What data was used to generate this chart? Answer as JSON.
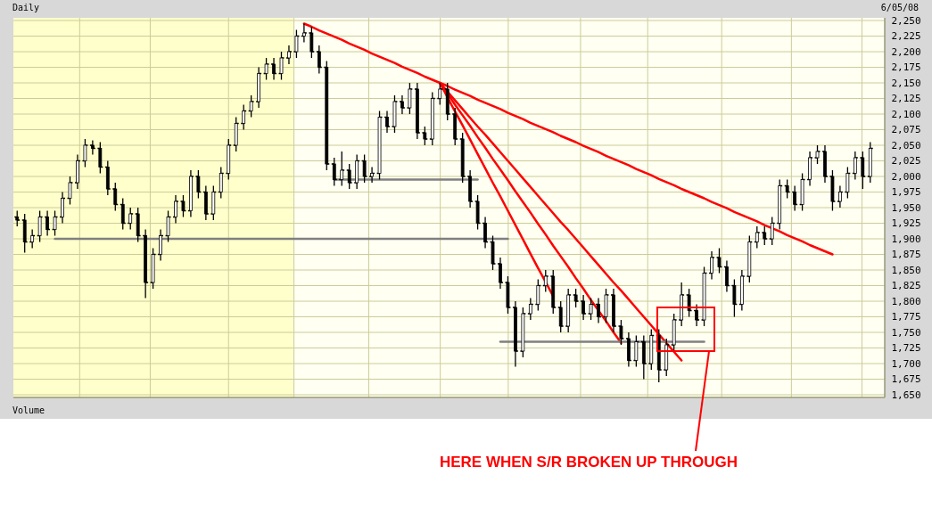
{
  "chart_data": {
    "type": "candlestick",
    "title": "Daily",
    "subtitle": "6/05/08",
    "annotations": [
      "Volume",
      "HERE WHEN S/R BROKEN UP THROUGH"
    ],
    "categories": [
      null,
      null,
      null,
      null,
      null,
      null,
      null,
      null,
      null,
      null,
      null,
      null,
      null,
      null,
      null,
      null,
      null,
      null,
      null,
      null,
      null,
      null,
      null,
      null,
      null,
      null,
      null,
      null,
      null,
      null,
      null,
      null,
      null,
      null,
      null,
      null,
      null,
      null,
      null,
      null,
      null,
      null,
      null,
      null,
      null,
      null,
      null,
      null,
      null,
      null,
      null,
      null,
      null,
      null,
      null,
      null,
      null,
      null,
      null,
      null,
      null,
      null,
      null,
      null,
      null,
      null,
      null,
      null,
      null,
      null,
      null,
      null,
      null,
      null,
      null,
      null,
      null,
      null,
      null,
      null,
      null,
      null,
      null,
      null,
      null,
      null,
      null,
      null,
      null,
      null,
      null,
      null,
      null,
      null,
      null,
      null,
      null,
      null,
      null,
      null,
      null,
      null,
      null,
      null,
      null,
      null,
      null,
      null,
      null,
      null,
      null,
      null,
      null,
      null
    ],
    "ohlc": [
      [
        1935,
        1945,
        1920,
        1930
      ],
      [
        1930,
        1940,
        1878,
        1895
      ],
      [
        1895,
        1915,
        1885,
        1905
      ],
      [
        1905,
        1945,
        1895,
        1935
      ],
      [
        1935,
        1945,
        1905,
        1915
      ],
      [
        1915,
        1945,
        1905,
        1935
      ],
      [
        1935,
        1975,
        1925,
        1965
      ],
      [
        1965,
        2000,
        1955,
        1990
      ],
      [
        1990,
        2035,
        1980,
        2025
      ],
      [
        2025,
        2060,
        2015,
        2050
      ],
      [
        2050,
        2058,
        2035,
        2045
      ],
      [
        2045,
        2055,
        2005,
        2015
      ],
      [
        2015,
        2025,
        1970,
        1980
      ],
      [
        1980,
        1990,
        1945,
        1955
      ],
      [
        1955,
        1965,
        1915,
        1925
      ],
      [
        1925,
        1950,
        1915,
        1940
      ],
      [
        1940,
        1950,
        1895,
        1905
      ],
      [
        1905,
        1915,
        1805,
        1830
      ],
      [
        1830,
        1885,
        1820,
        1875
      ],
      [
        1875,
        1915,
        1865,
        1905
      ],
      [
        1905,
        1945,
        1895,
        1935
      ],
      [
        1935,
        1970,
        1925,
        1960
      ],
      [
        1960,
        1970,
        1935,
        1945
      ],
      [
        1945,
        2010,
        1935,
        2000
      ],
      [
        2000,
        2010,
        1965,
        1975
      ],
      [
        1975,
        1985,
        1930,
        1940
      ],
      [
        1940,
        1985,
        1930,
        1975
      ],
      [
        1975,
        2015,
        1965,
        2005
      ],
      [
        2005,
        2060,
        1995,
        2050
      ],
      [
        2050,
        2095,
        2040,
        2085
      ],
      [
        2085,
        2115,
        2075,
        2105
      ],
      [
        2105,
        2130,
        2095,
        2120
      ],
      [
        2120,
        2175,
        2110,
        2165
      ],
      [
        2165,
        2190,
        2155,
        2180
      ],
      [
        2180,
        2190,
        2155,
        2165
      ],
      [
        2165,
        2200,
        2155,
        2190
      ],
      [
        2190,
        2210,
        2180,
        2200
      ],
      [
        2200,
        2235,
        2190,
        2225
      ],
      [
        2225,
        2245,
        2215,
        2230
      ],
      [
        2230,
        2240,
        2190,
        2200
      ],
      [
        2200,
        2210,
        2165,
        2175
      ],
      [
        2175,
        2185,
        2010,
        2020
      ],
      [
        2020,
        2030,
        1985,
        1995
      ],
      [
        1995,
        2040,
        1985,
        2010
      ],
      [
        2010,
        2020,
        1980,
        1990
      ],
      [
        1990,
        2035,
        1980,
        2025
      ],
      [
        2025,
        2035,
        1990,
        2000
      ],
      [
        2000,
        2015,
        1990,
        2005
      ],
      [
        2005,
        2105,
        1995,
        2095
      ],
      [
        2095,
        2105,
        2070,
        2080
      ],
      [
        2080,
        2130,
        2070,
        2120
      ],
      [
        2120,
        2130,
        2100,
        2110
      ],
      [
        2110,
        2150,
        2100,
        2140
      ],
      [
        2140,
        2150,
        2060,
        2070
      ],
      [
        2070,
        2080,
        2050,
        2060
      ],
      [
        2060,
        2135,
        2050,
        2125
      ],
      [
        2125,
        2150,
        2115,
        2140
      ],
      [
        2140,
        2150,
        2090,
        2100
      ],
      [
        2100,
        2110,
        2050,
        2060
      ],
      [
        2060,
        2070,
        1990,
        2000
      ],
      [
        2000,
        2010,
        1950,
        1960
      ],
      [
        1960,
        1970,
        1915,
        1925
      ],
      [
        1925,
        1935,
        1885,
        1895
      ],
      [
        1895,
        1905,
        1850,
        1860
      ],
      [
        1860,
        1870,
        1820,
        1830
      ],
      [
        1830,
        1840,
        1780,
        1790
      ],
      [
        1790,
        1800,
        1695,
        1720
      ],
      [
        1720,
        1790,
        1710,
        1780
      ],
      [
        1780,
        1805,
        1770,
        1795
      ],
      [
        1795,
        1835,
        1785,
        1825
      ],
      [
        1825,
        1850,
        1815,
        1840
      ],
      [
        1840,
        1850,
        1780,
        1790
      ],
      [
        1790,
        1800,
        1750,
        1760
      ],
      [
        1760,
        1820,
        1750,
        1810
      ],
      [
        1810,
        1820,
        1790,
        1800
      ],
      [
        1800,
        1810,
        1770,
        1780
      ],
      [
        1780,
        1805,
        1770,
        1795
      ],
      [
        1795,
        1805,
        1765,
        1775
      ],
      [
        1775,
        1820,
        1765,
        1810
      ],
      [
        1810,
        1820,
        1750,
        1760
      ],
      [
        1760,
        1770,
        1730,
        1740
      ],
      [
        1740,
        1750,
        1695,
        1705
      ],
      [
        1705,
        1745,
        1695,
        1735
      ],
      [
        1735,
        1745,
        1675,
        1700
      ],
      [
        1700,
        1755,
        1690,
        1745
      ],
      [
        1745,
        1755,
        1670,
        1690
      ],
      [
        1690,
        1740,
        1680,
        1730
      ],
      [
        1730,
        1780,
        1720,
        1770
      ],
      [
        1770,
        1830,
        1760,
        1810
      ],
      [
        1810,
        1820,
        1775,
        1785
      ],
      [
        1785,
        1795,
        1760,
        1770
      ],
      [
        1770,
        1855,
        1760,
        1845
      ],
      [
        1845,
        1880,
        1835,
        1870
      ],
      [
        1870,
        1885,
        1845,
        1855
      ],
      [
        1855,
        1865,
        1815,
        1825
      ],
      [
        1825,
        1835,
        1775,
        1795
      ],
      [
        1795,
        1850,
        1785,
        1840
      ],
      [
        1840,
        1905,
        1830,
        1895
      ],
      [
        1895,
        1920,
        1885,
        1910
      ],
      [
        1910,
        1920,
        1890,
        1900
      ],
      [
        1900,
        1935,
        1890,
        1925
      ],
      [
        1925,
        1995,
        1915,
        1985
      ],
      [
        1985,
        1995,
        1965,
        1975
      ],
      [
        1975,
        1985,
        1945,
        1955
      ],
      [
        1955,
        2005,
        1945,
        1995
      ],
      [
        1995,
        2040,
        1985,
        2030
      ],
      [
        2030,
        2050,
        2020,
        2040
      ],
      [
        2040,
        2050,
        1990,
        2000
      ],
      [
        2000,
        2010,
        1945,
        1960
      ],
      [
        1960,
        1985,
        1950,
        1975
      ],
      [
        1975,
        2015,
        1965,
        2005
      ],
      [
        2005,
        2040,
        1995,
        2030
      ],
      [
        2030,
        2040,
        1980,
        2000
      ],
      [
        2000,
        2055,
        1990,
        2045
      ]
    ],
    "color": "#000000",
    "series": [
      {
        "type": "line",
        "color": "#ff0000",
        "values": [
          null,
          null,
          null,
          null,
          null,
          null,
          null,
          null,
          null,
          null,
          null,
          null,
          null,
          null,
          null,
          null,
          null,
          null,
          null,
          null,
          null,
          null,
          null,
          null,
          null,
          null,
          null,
          null,
          null,
          null,
          null,
          null,
          null,
          null,
          null,
          null,
          null,
          null,
          2245,
          2240,
          2234,
          2229,
          2224,
          2219,
          2213,
          2208,
          2203,
          2197,
          2192,
          2187,
          2182,
          2176,
          2171,
          2166,
          2160,
          2155,
          2150,
          2145,
          2139,
          2134,
          2129,
          2123,
          2118,
          2113,
          2108,
          2102,
          2097,
          2092,
          2086,
          2081,
          2076,
          2071,
          2065,
          2060,
          2055,
          2049,
          2044,
          2039,
          2033,
          2028,
          2023,
          2018,
          2012,
          2007,
          2002,
          1996,
          1991,
          1986,
          1980,
          1975,
          1970,
          1965,
          1959,
          1954,
          1949,
          1943,
          1938,
          1933,
          1928,
          1922,
          1917,
          1912,
          1906,
          1901,
          1896,
          1890,
          1885,
          1880,
          1875,
          null,
          null,
          null,
          null,
          null
        ]
      },
      {
        "type": "line",
        "color": "#ff0000",
        "values": [
          null,
          null,
          null,
          null,
          null,
          null,
          null,
          null,
          null,
          null,
          null,
          null,
          null,
          null,
          null,
          null,
          null,
          null,
          null,
          null,
          null,
          null,
          null,
          null,
          null,
          null,
          null,
          null,
          null,
          null,
          null,
          null,
          null,
          null,
          null,
          null,
          null,
          null,
          null,
          null,
          null,
          null,
          null,
          null,
          null,
          null,
          null,
          null,
          null,
          null,
          null,
          null,
          null,
          null,
          null,
          null,
          2150,
          2127,
          2104,
          2082,
          2059,
          2036,
          2013,
          1990,
          1968,
          1945,
          1922,
          1899,
          1876,
          1853,
          1831,
          1808,
          null,
          null,
          null,
          null,
          null,
          null,
          null,
          null,
          null,
          null,
          null,
          null,
          null,
          null,
          null,
          null,
          null,
          null,
          null,
          null,
          null,
          null,
          null,
          null,
          null,
          null,
          null,
          null,
          null,
          null,
          null,
          null,
          null,
          null,
          null,
          null,
          null,
          null,
          null,
          null,
          null,
          null
        ]
      },
      {
        "type": "line",
        "color": "#ff0000",
        "values": [
          null,
          null,
          null,
          null,
          null,
          null,
          null,
          null,
          null,
          null,
          null,
          null,
          null,
          null,
          null,
          null,
          null,
          null,
          null,
          null,
          null,
          null,
          null,
          null,
          null,
          null,
          null,
          null,
          null,
          null,
          null,
          null,
          null,
          null,
          null,
          null,
          null,
          null,
          null,
          null,
          null,
          null,
          null,
          null,
          null,
          null,
          null,
          null,
          null,
          null,
          null,
          null,
          null,
          null,
          null,
          null,
          2150,
          2133,
          2115,
          2098,
          2081,
          2063,
          2046,
          2028,
          2011,
          1994,
          1976,
          1959,
          1942,
          1924,
          1907,
          1889,
          1872,
          1855,
          1837,
          1820,
          1802,
          1785,
          1768,
          1750,
          1733,
          null,
          null,
          null,
          null,
          null,
          null,
          null,
          null,
          null,
          null,
          null,
          null,
          null,
          null,
          null,
          null,
          null,
          null,
          null,
          null,
          null,
          null,
          null,
          null,
          null,
          null,
          null,
          null,
          null,
          null,
          null,
          null,
          null
        ]
      },
      {
        "type": "line",
        "color": "#ff0000",
        "values": [
          null,
          null,
          null,
          null,
          null,
          null,
          null,
          null,
          null,
          null,
          null,
          null,
          null,
          null,
          null,
          null,
          null,
          null,
          null,
          null,
          null,
          null,
          null,
          null,
          null,
          null,
          null,
          null,
          null,
          null,
          null,
          null,
          null,
          null,
          null,
          null,
          null,
          null,
          null,
          null,
          null,
          null,
          null,
          null,
          null,
          null,
          null,
          null,
          null,
          null,
          null,
          null,
          null,
          null,
          null,
          null,
          2150,
          2136,
          2122,
          2108,
          2094,
          2080,
          2067,
          2053,
          2039,
          2025,
          2011,
          1997,
          1983,
          1969,
          1955,
          1941,
          1927,
          1914,
          1900,
          1886,
          1872,
          1858,
          1844,
          1830,
          1817,
          1803,
          1789,
          1775,
          1761,
          1747,
          1733,
          1719,
          1705,
          null,
          null,
          null,
          null,
          null,
          null,
          null,
          null,
          null,
          null,
          null,
          null,
          null,
          null,
          null,
          null,
          null,
          null,
          null,
          null,
          null,
          null,
          null,
          null,
          null
        ]
      },
      {
        "type": "line",
        "color": "#808080",
        "values": [
          null,
          null,
          null,
          null,
          null,
          1900,
          1900,
          1900,
          1900,
          1900,
          1900,
          1900,
          1900,
          1900,
          1900,
          1900,
          1900,
          1900,
          1900,
          1900,
          1900,
          1900,
          1900,
          1900,
          1900,
          1900,
          1900,
          1900,
          1900,
          1900,
          1900,
          1900,
          1900,
          1900,
          1900,
          1900,
          1900,
          1900,
          1900,
          1900,
          1900,
          1900,
          1900,
          1900,
          1900,
          1900,
          1900,
          1900,
          1900,
          1900,
          1900,
          1900,
          1900,
          1900,
          1900,
          1900,
          1900,
          1900,
          1900,
          1900,
          1900,
          1900,
          1900,
          1900,
          1900,
          1900,
          null,
          null,
          null,
          null,
          null,
          null,
          null,
          null,
          null,
          null,
          null,
          null,
          null,
          null,
          null,
          null,
          null,
          null,
          null,
          null,
          null,
          null,
          null,
          null,
          null,
          null,
          null,
          null,
          null,
          null,
          null,
          null,
          null,
          null,
          null,
          null,
          null,
          null,
          null,
          null,
          null,
          null,
          null,
          null,
          null,
          null,
          null,
          null
        ]
      },
      {
        "type": "line",
        "color": "#808080",
        "values": [
          null,
          null,
          null,
          null,
          null,
          null,
          null,
          null,
          null,
          null,
          null,
          null,
          null,
          null,
          null,
          null,
          null,
          null,
          null,
          null,
          null,
          null,
          null,
          null,
          null,
          null,
          null,
          null,
          null,
          null,
          null,
          null,
          null,
          null,
          null,
          null,
          null,
          null,
          null,
          null,
          null,
          null,
          1995,
          1995,
          1995,
          1995,
          1995,
          1995,
          1995,
          1995,
          1995,
          1995,
          1995,
          1995,
          1995,
          1995,
          1995,
          1995,
          1995,
          1995,
          1995,
          1995,
          null,
          null,
          null,
          null,
          null,
          null,
          null,
          null,
          null,
          null,
          null,
          null,
          null,
          null,
          null,
          null,
          null,
          null,
          null,
          null,
          null,
          null,
          null,
          null,
          null,
          null,
          null,
          null,
          null,
          null,
          null,
          null,
          null,
          null,
          null,
          null,
          null,
          null,
          null,
          null,
          null,
          null,
          null,
          null,
          null,
          null,
          null,
          null,
          null,
          null,
          null,
          null
        ]
      },
      {
        "type": "line",
        "color": "#808080",
        "values": [
          null,
          null,
          null,
          null,
          null,
          null,
          null,
          null,
          null,
          null,
          null,
          null,
          null,
          null,
          null,
          null,
          null,
          null,
          null,
          null,
          null,
          null,
          null,
          null,
          null,
          null,
          null,
          null,
          null,
          null,
          null,
          null,
          null,
          null,
          null,
          null,
          null,
          null,
          null,
          null,
          null,
          null,
          null,
          null,
          null,
          null,
          null,
          null,
          null,
          null,
          null,
          null,
          null,
          null,
          null,
          null,
          null,
          null,
          null,
          null,
          null,
          null,
          null,
          null,
          1735,
          1735,
          1735,
          1735,
          1735,
          1735,
          1735,
          1735,
          1735,
          1735,
          1735,
          1735,
          1735,
          1735,
          1735,
          1735,
          1735,
          1735,
          1735,
          1735,
          1735,
          1735,
          1735,
          1735,
          1735,
          1735,
          1735,
          1735,
          null,
          null,
          null,
          null,
          null,
          null,
          null,
          null,
          null,
          null,
          null,
          null,
          null,
          null,
          null,
          null,
          null,
          null,
          null,
          null,
          null,
          null
        ]
      }
    ],
    "ylim": [
      1650,
      2250
    ],
    "yticks": [
      {
        "value": 1650,
        "label": "1,650"
      },
      {
        "value": 1675,
        "label": "1,675"
      },
      {
        "value": 1700,
        "label": "1,700"
      },
      {
        "value": 1725,
        "label": "1,725"
      },
      {
        "value": 1750,
        "label": "1,750"
      },
      {
        "value": 1775,
        "label": "1,775"
      },
      {
        "value": 1800,
        "label": "1,800"
      },
      {
        "value": 1825,
        "label": "1,825"
      },
      {
        "value": 1850,
        "label": "1,850"
      },
      {
        "value": 1875,
        "label": "1,875"
      },
      {
        "value": 1900,
        "label": "1,900"
      },
      {
        "value": 1925,
        "label": "1,925"
      },
      {
        "value": 1950,
        "label": "1,950"
      },
      {
        "value": 1975,
        "label": "1,975"
      },
      {
        "value": 2000,
        "label": "2,000"
      },
      {
        "value": 2025,
        "label": "2,025"
      },
      {
        "value": 2050,
        "label": "2,050"
      },
      {
        "value": 2075,
        "label": "2,075"
      },
      {
        "value": 2100,
        "label": "2,100"
      },
      {
        "value": 2125,
        "label": "2,125"
      },
      {
        "value": 2150,
        "label": "2,150"
      },
      {
        "value": 2175,
        "label": "2,175"
      },
      {
        "value": 2200,
        "label": "2,200"
      },
      {
        "value": 2225,
        "label": "2,225"
      },
      {
        "value": 2250,
        "label": "2,250"
      }
    ],
    "grid": true
  }
}
